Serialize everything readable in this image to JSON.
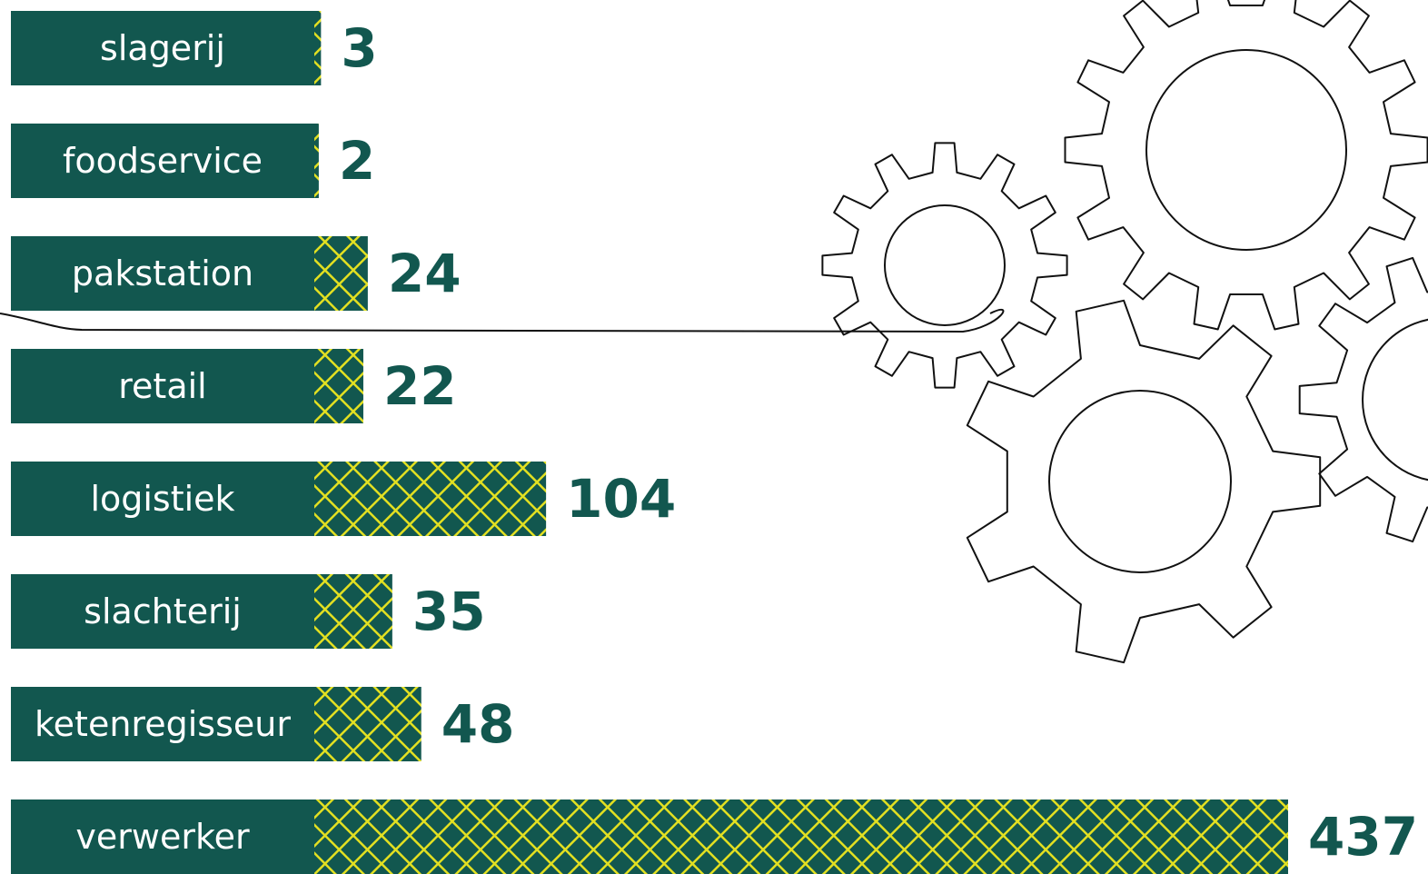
{
  "chart_data": {
    "type": "bar",
    "orientation": "horizontal",
    "categories": [
      "slagerij",
      "foodservice",
      "pakstation",
      "retail",
      "logistiek",
      "slachterij",
      "ketenregisseur",
      "verwerker"
    ],
    "values": [
      3,
      2,
      24,
      22,
      104,
      35,
      48,
      437
    ],
    "color": "#12574f",
    "hatch_color": "#e3e021"
  }
}
